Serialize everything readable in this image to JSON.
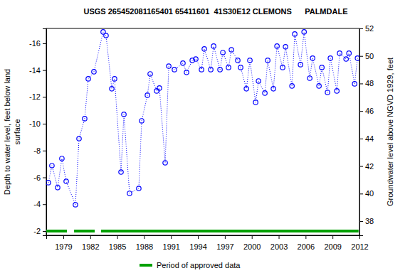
{
  "chart_data": {
    "type": "scatter",
    "title": "USGS 265452081165401 65411601  41S30E12 CLEMONS      PALMDALE",
    "ylabel": "Depth to water level, feet below land\nsurface",
    "y2label": "Groundwater level above NGVD 1929, feet",
    "x": [
      1977.33,
      1977.73,
      1978.37,
      1978.84,
      1979.32,
      1980.35,
      1980.75,
      1981.38,
      1981.78,
      1982.41,
      1983.44,
      1983.76,
      1984.4,
      1984.71,
      1985.43,
      1985.75,
      1986.38,
      1987.41,
      1987.73,
      1988.37,
      1988.68,
      1989.4,
      1989.71,
      1990.35,
      1990.75,
      1991.38,
      1992.33,
      1992.73,
      1993.37,
      1993.76,
      1994.4,
      1994.71,
      1995.43,
      1995.75,
      1996.46,
      1996.78,
      1997.41,
      1997.73,
      1998.44,
      1998.76,
      1999.4,
      1999.79,
      2000.43,
      2000.75,
      2001.46,
      2001.78,
      2002.41,
      2002.81,
      2003.44,
      2003.76,
      2004.48,
      2004.79,
      2005.43,
      2005.83,
      2006.46,
      2006.78,
      2007.49,
      2007.81,
      2008.44,
      2008.76,
      2009.48,
      2009.79,
      2010.51,
      2010.83,
      2011.46,
      2011.78
    ],
    "series": [
      {
        "color": "#0000ff",
        "marker": "circle",
        "line_style": "dotted",
        "values": [
          -5.61,
          -6.88,
          -5.24,
          -7.41,
          -5.71,
          -3.96,
          -8.89,
          -10.38,
          -13.35,
          -13.88,
          -16.85,
          -16.58,
          -12.61,
          -13.35,
          -6.4,
          -10.7,
          -4.81,
          -5.18,
          -10.22,
          -12.13,
          -13.72,
          -12.45,
          -12.66,
          -7.09,
          -14.3,
          -14.04,
          -14.52,
          -13.83,
          -14.73,
          -14.83,
          -14.04,
          -15.58,
          -14.04,
          -15.79,
          -14.04,
          -15.31,
          -14.2,
          -15.52,
          -14.73,
          -14.2,
          -12.61,
          -14.73,
          -11.6,
          -13.19,
          -12.29,
          -14.73,
          -12.61,
          -15.79,
          -14.2,
          -15.74,
          -12.82,
          -16.69,
          -14.41,
          -16.85,
          -13.4,
          -14.89,
          -12.82,
          -14.2,
          -12.34,
          -14.89,
          -12.45,
          -15.26,
          -14.83,
          -15.26,
          -12.98,
          -14.89
        ]
      }
    ],
    "approved": {
      "name": "Period of approved data",
      "color": "#00a000",
      "periods": [
        [
          1977.1,
          1979.4
        ],
        [
          1980.2,
          1982.5
        ],
        [
          1983.2,
          2011.9
        ]
      ]
    },
    "xlim": [
      1977.1,
      2012
    ],
    "xticks": [
      1979,
      1982,
      1985,
      1988,
      1991,
      1994,
      1997,
      2000,
      2003,
      2006,
      2009,
      2012
    ],
    "ylim": [
      -17.11,
      -1.68
    ],
    "yticks": [
      -16,
      -14,
      -12,
      -10,
      -8,
      -6,
      -4,
      -2
    ],
    "y2lim": [
      36.97,
      52
    ],
    "y2ticks": [
      38,
      40,
      42,
      44,
      46,
      48,
      50,
      52
    ],
    "grid": false,
    "legend": "bottom"
  }
}
